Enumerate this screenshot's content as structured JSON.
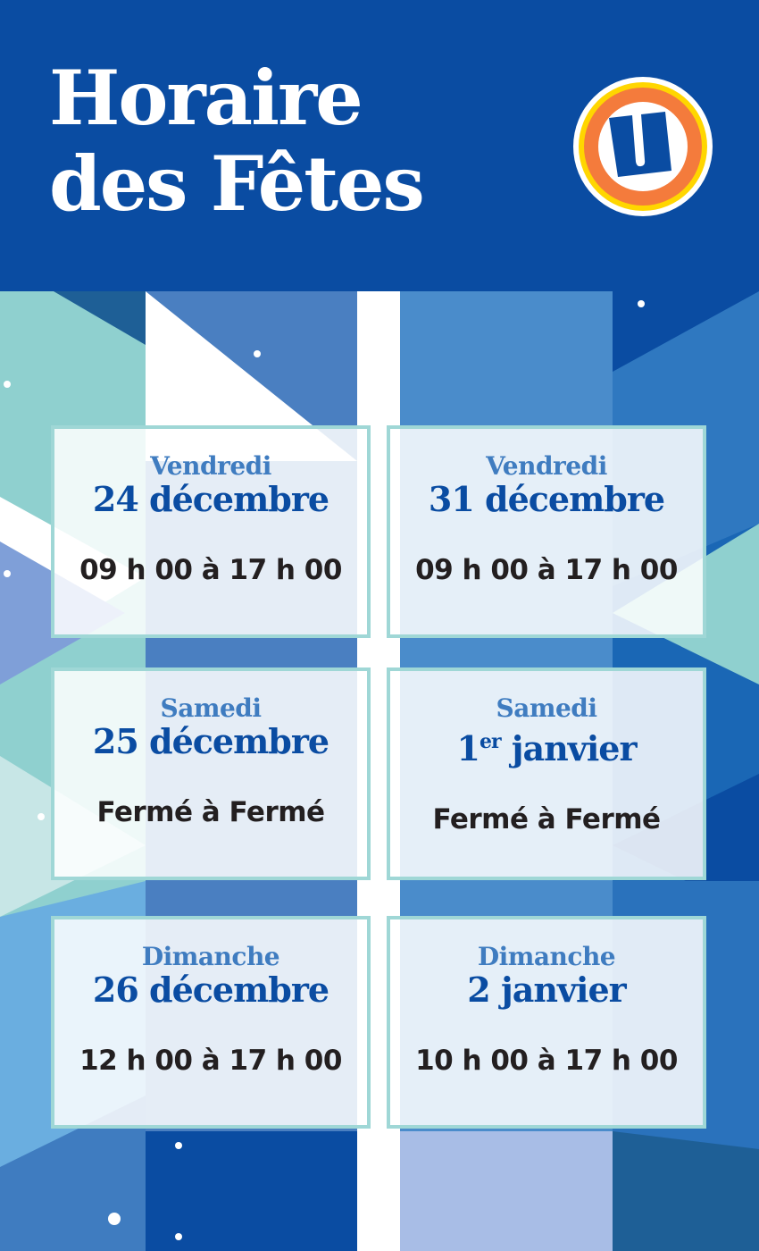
{
  "header": {
    "title_line1": "Horaire",
    "title_line2": "des Fêtes",
    "logo_letter": "U"
  },
  "colors": {
    "brand_blue": "#0a4ca2",
    "accent_blue": "#3f7cc0",
    "teal": "#9fd7d6",
    "logo_orange": "#f47b3c",
    "logo_yellow": "#ffd600"
  },
  "schedule": [
    {
      "day": "Vendredi",
      "date_num": "24",
      "date_sup": "",
      "date_rest": " décembre",
      "hours": "09 h 00 à 17 h 00"
    },
    {
      "day": "Vendredi",
      "date_num": "31",
      "date_sup": "",
      "date_rest": " décembre",
      "hours": "09 h 00 à 17 h 00"
    },
    {
      "day": "Samedi",
      "date_num": "25",
      "date_sup": "",
      "date_rest": " décembre",
      "hours": "Fermé à Fermé"
    },
    {
      "day": "Samedi",
      "date_num": "1",
      "date_sup": "er",
      "date_rest": " janvier",
      "hours": "Fermé à Fermé"
    },
    {
      "day": "Dimanche",
      "date_num": "26",
      "date_sup": "",
      "date_rest": " décembre",
      "hours": "12 h 00 à 17 h 00"
    },
    {
      "day": "Dimanche",
      "date_num": "2",
      "date_sup": "",
      "date_rest": " janvier",
      "hours": "10 h 00 à 17 h 00"
    }
  ]
}
